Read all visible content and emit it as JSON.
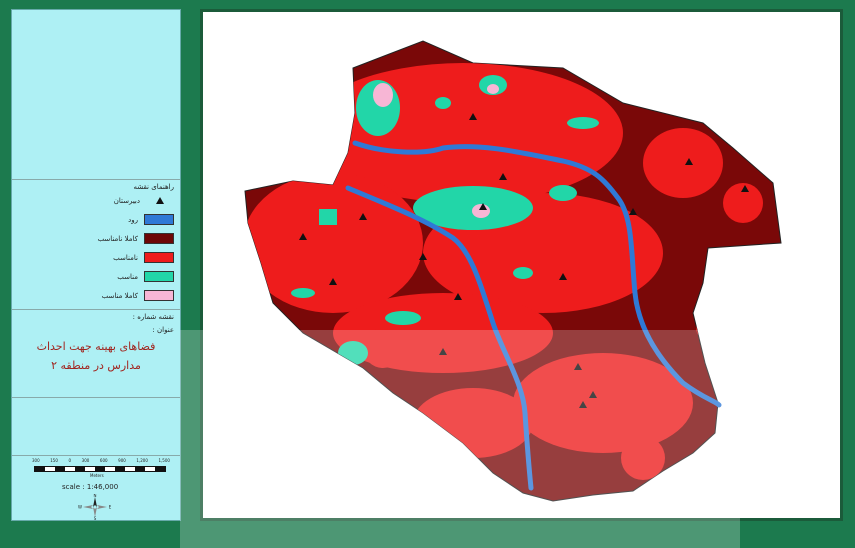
{
  "legend": {
    "header": "راهنمای نقشه",
    "school_label": "دبیرستان",
    "items": [
      {
        "label": "رود",
        "color": "#2f79d6"
      },
      {
        "label": "کاملا نامناسب",
        "color": "#6d0707"
      },
      {
        "label": "نامناسب",
        "color": "#ee1c1c"
      },
      {
        "label": "مناسب",
        "color": "#22d6a8"
      },
      {
        "label": "کاملا مناسب",
        "color": "#f7b6d5"
      }
    ]
  },
  "map_info": {
    "map_number_label": "نقشه شماره :",
    "title_label": "عنوان :",
    "title_line1": "فضاهای بهینه جهت احداث",
    "title_line2": "مدارس در منطقه ۲"
  },
  "scale": {
    "ticks": [
      "300",
      "150",
      "0",
      "300",
      "600",
      "900",
      "1,200",
      "1,500"
    ],
    "unit": "Meters",
    "text": "scale : 1:46,000"
  },
  "compass": {
    "n": "N",
    "s": "S",
    "e": "E",
    "w": "W"
  }
}
